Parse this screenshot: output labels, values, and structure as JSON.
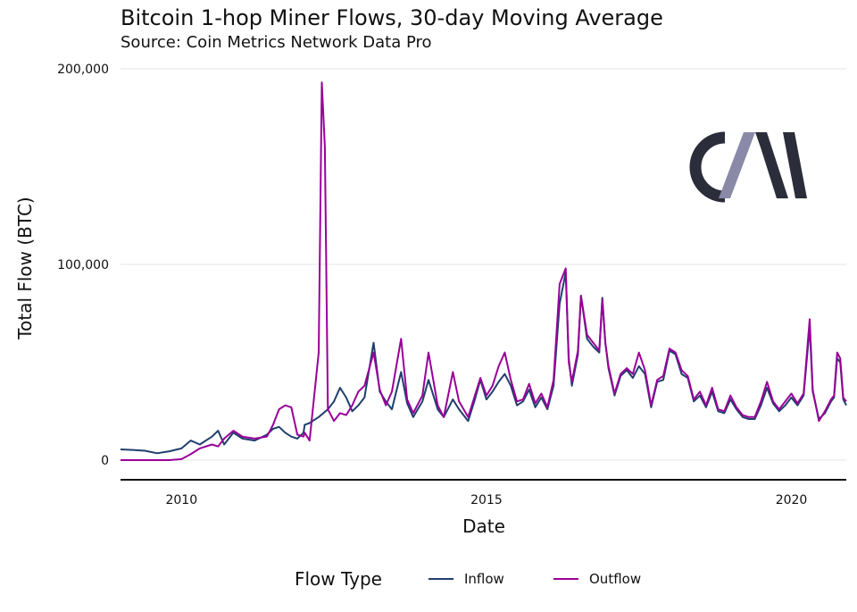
{
  "chart_data": {
    "type": "line",
    "title": "Bitcoin 1-hop Miner Flows, 30-day Moving Average",
    "subtitle": "Source: Coin Metrics Network Data Pro",
    "xlabel": "Date",
    "ylabel": "Total Flow (BTC)",
    "xlim": [
      2009.0,
      2020.9
    ],
    "ylim": [
      -10000,
      200000
    ],
    "x_ticks": [
      2010,
      2015,
      2020
    ],
    "x_tick_labels": [
      "2010",
      "2015",
      "2020"
    ],
    "y_ticks": [
      0,
      100000,
      200000
    ],
    "y_tick_labels": [
      "0",
      "100,000",
      "200,000"
    ],
    "grid": true,
    "legend": {
      "title": "Flow Type",
      "position": "bottom"
    },
    "series": [
      {
        "name": "Inflow",
        "color": "#1f3f6e",
        "points": [
          [
            2009.0,
            5500
          ],
          [
            2009.2,
            5200
          ],
          [
            2009.4,
            4800
          ],
          [
            2009.6,
            3500
          ],
          [
            2009.8,
            4500
          ],
          [
            2010.0,
            6000
          ],
          [
            2010.15,
            10000
          ],
          [
            2010.3,
            8000
          ],
          [
            2010.5,
            12000
          ],
          [
            2010.6,
            15000
          ],
          [
            2010.7,
            8000
          ],
          [
            2010.85,
            14000
          ],
          [
            2011.0,
            11000
          ],
          [
            2011.2,
            10000
          ],
          [
            2011.4,
            13000
          ],
          [
            2011.5,
            16000
          ],
          [
            2011.6,
            17000
          ],
          [
            2011.7,
            14000
          ],
          [
            2011.8,
            12000
          ],
          [
            2011.9,
            11000
          ],
          [
            2012.0,
            14000
          ],
          [
            2012.02,
            18000
          ],
          [
            2012.1,
            19000
          ],
          [
            2012.25,
            22000
          ],
          [
            2012.4,
            26000
          ],
          [
            2012.5,
            30000
          ],
          [
            2012.6,
            37000
          ],
          [
            2012.7,
            32000
          ],
          [
            2012.8,
            25000
          ],
          [
            2012.9,
            28000
          ],
          [
            2013.0,
            32000
          ],
          [
            2013.15,
            60000
          ],
          [
            2013.25,
            35000
          ],
          [
            2013.35,
            30000
          ],
          [
            2013.45,
            26000
          ],
          [
            2013.6,
            45000
          ],
          [
            2013.7,
            29000
          ],
          [
            2013.8,
            22000
          ],
          [
            2013.95,
            30000
          ],
          [
            2014.05,
            41000
          ],
          [
            2014.2,
            26000
          ],
          [
            2014.3,
            22000
          ],
          [
            2014.45,
            31000
          ],
          [
            2014.55,
            26000
          ],
          [
            2014.7,
            20000
          ],
          [
            2014.8,
            30000
          ],
          [
            2014.9,
            41000
          ],
          [
            2015.0,
            31000
          ],
          [
            2015.1,
            35000
          ],
          [
            2015.2,
            40000
          ],
          [
            2015.3,
            44000
          ],
          [
            2015.4,
            38000
          ],
          [
            2015.5,
            28000
          ],
          [
            2015.6,
            30000
          ],
          [
            2015.7,
            36000
          ],
          [
            2015.8,
            27000
          ],
          [
            2015.9,
            32000
          ],
          [
            2016.0,
            26000
          ],
          [
            2016.1,
            38000
          ],
          [
            2016.2,
            80000
          ],
          [
            2016.3,
            96000
          ],
          [
            2016.35,
            52000
          ],
          [
            2016.4,
            38000
          ],
          [
            2016.5,
            54000
          ],
          [
            2016.55,
            84000
          ],
          [
            2016.65,
            62000
          ],
          [
            2016.75,
            58000
          ],
          [
            2016.85,
            55000
          ],
          [
            2016.9,
            83000
          ],
          [
            2016.95,
            60000
          ],
          [
            2017.0,
            47000
          ],
          [
            2017.1,
            33000
          ],
          [
            2017.2,
            43000
          ],
          [
            2017.3,
            46000
          ],
          [
            2017.4,
            42000
          ],
          [
            2017.5,
            48000
          ],
          [
            2017.6,
            44000
          ],
          [
            2017.7,
            27000
          ],
          [
            2017.8,
            40000
          ],
          [
            2017.9,
            41000
          ],
          [
            2018.0,
            56000
          ],
          [
            2018.1,
            54000
          ],
          [
            2018.2,
            44000
          ],
          [
            2018.3,
            42000
          ],
          [
            2018.4,
            30000
          ],
          [
            2018.5,
            33000
          ],
          [
            2018.6,
            27000
          ],
          [
            2018.7,
            35000
          ],
          [
            2018.8,
            25000
          ],
          [
            2018.9,
            24000
          ],
          [
            2019.0,
            31000
          ],
          [
            2019.1,
            26000
          ],
          [
            2019.2,
            22000
          ],
          [
            2019.3,
            21000
          ],
          [
            2019.4,
            21000
          ],
          [
            2019.5,
            28000
          ],
          [
            2019.6,
            37000
          ],
          [
            2019.7,
            29000
          ],
          [
            2019.8,
            25000
          ],
          [
            2019.9,
            28000
          ],
          [
            2020.0,
            32000
          ],
          [
            2020.1,
            28000
          ],
          [
            2020.2,
            33000
          ],
          [
            2020.3,
            68000
          ],
          [
            2020.35,
            35000
          ],
          [
            2020.45,
            21000
          ],
          [
            2020.55,
            24000
          ],
          [
            2020.65,
            30000
          ],
          [
            2020.7,
            32000
          ],
          [
            2020.75,
            52000
          ],
          [
            2020.8,
            50000
          ],
          [
            2020.85,
            31000
          ],
          [
            2020.9,
            28000
          ]
        ]
      },
      {
        "name": "Outflow",
        "color": "#990099",
        "points": [
          [
            2009.0,
            0
          ],
          [
            2009.2,
            0
          ],
          [
            2009.4,
            0
          ],
          [
            2009.6,
            0
          ],
          [
            2009.8,
            0
          ],
          [
            2010.0,
            500
          ],
          [
            2010.15,
            3000
          ],
          [
            2010.3,
            6000
          ],
          [
            2010.5,
            8000
          ],
          [
            2010.6,
            7000
          ],
          [
            2010.7,
            11000
          ],
          [
            2010.85,
            15000
          ],
          [
            2011.0,
            12000
          ],
          [
            2011.2,
            11000
          ],
          [
            2011.4,
            12000
          ],
          [
            2011.5,
            18000
          ],
          [
            2011.6,
            26000
          ],
          [
            2011.7,
            28000
          ],
          [
            2011.8,
            27000
          ],
          [
            2011.9,
            13000
          ],
          [
            2012.0,
            12000
          ],
          [
            2012.02,
            14000
          ],
          [
            2012.1,
            10000
          ],
          [
            2012.25,
            55000
          ],
          [
            2012.3,
            193000
          ],
          [
            2012.35,
            160000
          ],
          [
            2012.4,
            26000
          ],
          [
            2012.5,
            20000
          ],
          [
            2012.6,
            24000
          ],
          [
            2012.7,
            23000
          ],
          [
            2012.8,
            28000
          ],
          [
            2012.9,
            35000
          ],
          [
            2013.0,
            38000
          ],
          [
            2013.15,
            55000
          ],
          [
            2013.25,
            36000
          ],
          [
            2013.35,
            28000
          ],
          [
            2013.45,
            35000
          ],
          [
            2013.6,
            62000
          ],
          [
            2013.7,
            31000
          ],
          [
            2013.8,
            24000
          ],
          [
            2013.95,
            33000
          ],
          [
            2014.05,
            55000
          ],
          [
            2014.2,
            28000
          ],
          [
            2014.3,
            22000
          ],
          [
            2014.45,
            45000
          ],
          [
            2014.55,
            30000
          ],
          [
            2014.7,
            22000
          ],
          [
            2014.8,
            32000
          ],
          [
            2014.9,
            42000
          ],
          [
            2015.0,
            33000
          ],
          [
            2015.1,
            38000
          ],
          [
            2015.2,
            48000
          ],
          [
            2015.3,
            55000
          ],
          [
            2015.4,
            41000
          ],
          [
            2015.5,
            30000
          ],
          [
            2015.6,
            31000
          ],
          [
            2015.7,
            39000
          ],
          [
            2015.8,
            29000
          ],
          [
            2015.9,
            34000
          ],
          [
            2016.0,
            27000
          ],
          [
            2016.1,
            41000
          ],
          [
            2016.2,
            90000
          ],
          [
            2016.3,
            98000
          ],
          [
            2016.35,
            50000
          ],
          [
            2016.4,
            40000
          ],
          [
            2016.5,
            56000
          ],
          [
            2016.55,
            84000
          ],
          [
            2016.65,
            64000
          ],
          [
            2016.75,
            60000
          ],
          [
            2016.85,
            56000
          ],
          [
            2016.9,
            82000
          ],
          [
            2016.95,
            60000
          ],
          [
            2017.0,
            48000
          ],
          [
            2017.1,
            34000
          ],
          [
            2017.2,
            44000
          ],
          [
            2017.3,
            47000
          ],
          [
            2017.4,
            44000
          ],
          [
            2017.5,
            55000
          ],
          [
            2017.6,
            46000
          ],
          [
            2017.7,
            28000
          ],
          [
            2017.8,
            41000
          ],
          [
            2017.9,
            43000
          ],
          [
            2018.0,
            57000
          ],
          [
            2018.1,
            55000
          ],
          [
            2018.2,
            46000
          ],
          [
            2018.3,
            43000
          ],
          [
            2018.4,
            31000
          ],
          [
            2018.5,
            35000
          ],
          [
            2018.6,
            28000
          ],
          [
            2018.7,
            37000
          ],
          [
            2018.8,
            26000
          ],
          [
            2018.9,
            25000
          ],
          [
            2019.0,
            33000
          ],
          [
            2019.1,
            27000
          ],
          [
            2019.2,
            23000
          ],
          [
            2019.3,
            22000
          ],
          [
            2019.4,
            22000
          ],
          [
            2019.5,
            30000
          ],
          [
            2019.6,
            40000
          ],
          [
            2019.7,
            30000
          ],
          [
            2019.8,
            26000
          ],
          [
            2019.9,
            30000
          ],
          [
            2020.0,
            34000
          ],
          [
            2020.1,
            29000
          ],
          [
            2020.2,
            34000
          ],
          [
            2020.3,
            72000
          ],
          [
            2020.35,
            36000
          ],
          [
            2020.45,
            20000
          ],
          [
            2020.55,
            25000
          ],
          [
            2020.65,
            31000
          ],
          [
            2020.7,
            33000
          ],
          [
            2020.75,
            55000
          ],
          [
            2020.8,
            52000
          ],
          [
            2020.85,
            32000
          ],
          [
            2020.9,
            30000
          ]
        ]
      }
    ]
  },
  "logo": {
    "text": "CM",
    "colors": {
      "dark": "#2b2d3a",
      "slash": "#8a8aa8"
    }
  }
}
